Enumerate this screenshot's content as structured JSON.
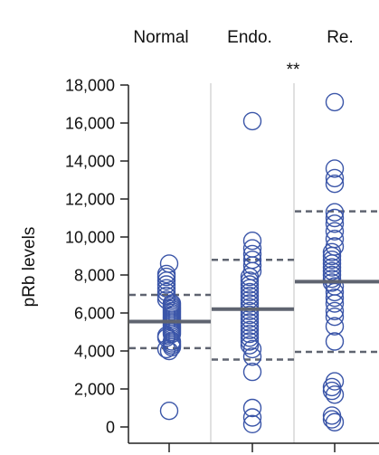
{
  "chart_data": {
    "type": "scatter",
    "categories": [
      "Normal",
      "Endo.",
      "Re."
    ],
    "ylabel": "pRb levels",
    "ylim": [
      0,
      18000
    ],
    "yticks": [
      0,
      2000,
      4000,
      6000,
      8000,
      10000,
      12000,
      14000,
      16000,
      18000
    ],
    "ytick_labels": [
      "0",
      "2,000",
      "4,000",
      "6,000",
      "8,000",
      "10,000",
      "12,000",
      "14,000",
      "16,000",
      "18,000"
    ],
    "grid": false,
    "significance": {
      "label": "**",
      "between": [
        "Endo.",
        "Re."
      ]
    },
    "marker_color": "#3a55a8",
    "line_color": "#5f6470",
    "divider_color": "#d6d6d6",
    "groups": [
      {
        "name": "Normal",
        "mean": 5550,
        "sd_upper": 6950,
        "sd_lower": 4150,
        "values": [
          850,
          4000,
          4100,
          4200,
          4300,
          4400,
          4500,
          4700,
          4800,
          4900,
          5000,
          5100,
          5200,
          5300,
          5400,
          5500,
          5600,
          5700,
          5800,
          5900,
          6000,
          6100,
          6200,
          6300,
          6400,
          6500,
          6700,
          6900,
          7100,
          7300,
          7500,
          7700,
          7900,
          8050,
          8600
        ]
      },
      {
        "name": "Endo.",
        "mean": 6200,
        "sd_upper": 8800,
        "sd_lower": 3550,
        "values": [
          150,
          500,
          1000,
          2900,
          3700,
          4100,
          4300,
          4500,
          4700,
          4900,
          5100,
          5300,
          5500,
          5700,
          5900,
          6100,
          6300,
          6500,
          6700,
          6900,
          7100,
          7300,
          7500,
          7700,
          7900,
          8200,
          8500,
          8800,
          9100,
          9400,
          9800,
          16100
        ]
      },
      {
        "name": "Re.",
        "mean": 7650,
        "sd_upper": 11350,
        "sd_lower": 3950,
        "values": [
          250,
          400,
          600,
          1700,
          1900,
          2100,
          2400,
          4500,
          5300,
          5800,
          6100,
          6500,
          6800,
          7100,
          7400,
          7600,
          7800,
          8000,
          8200,
          8400,
          8600,
          8800,
          9000,
          9200,
          9500,
          9900,
          10300,
          10700,
          11000,
          11300,
          12800,
          13100,
          13600,
          17100
        ]
      }
    ]
  }
}
